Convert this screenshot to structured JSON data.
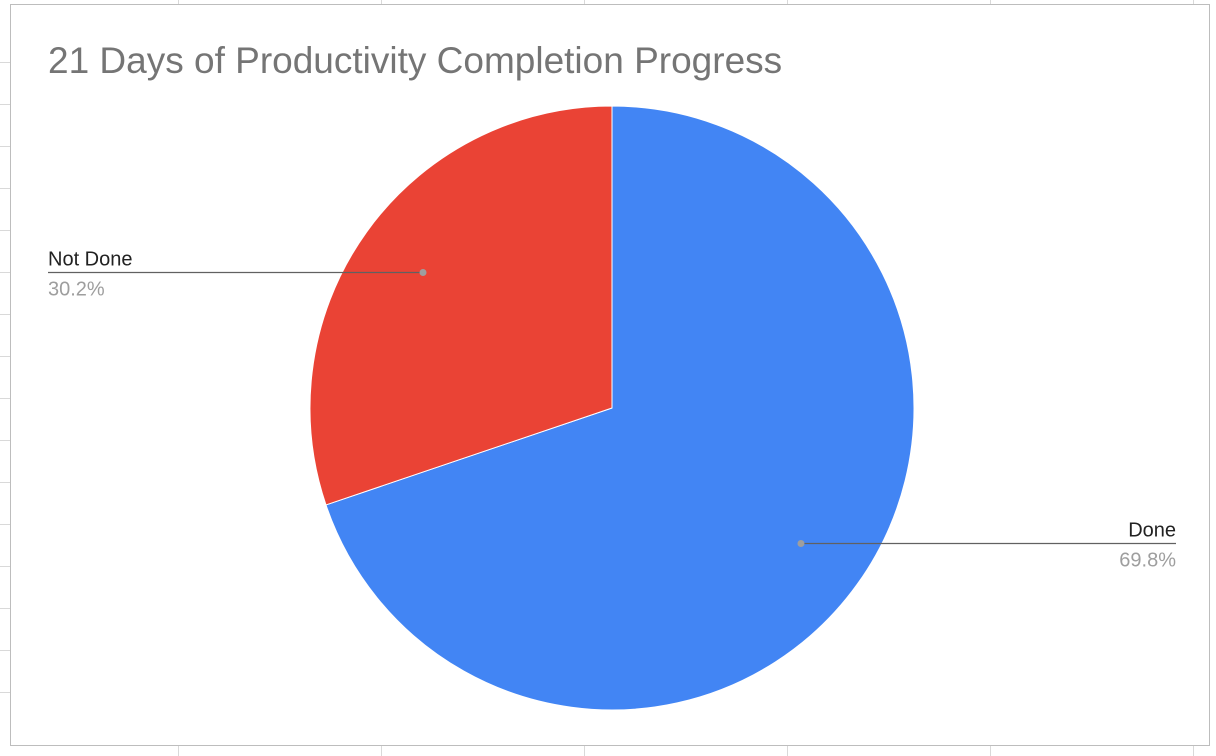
{
  "chart_data": {
    "type": "pie",
    "title": "21 Days of Productivity Completion Progress",
    "slices": [
      {
        "label": "Done",
        "percent_label": "69.8%",
        "value": 69.8,
        "color": "#4285f4"
      },
      {
        "label": "Not Done",
        "percent_label": "30.2%",
        "value": 30.2,
        "color": "#ea4335"
      }
    ],
    "start_angle_deg": 0,
    "direction": "clockwise",
    "legend": "none",
    "data_labels": "outside with leader lines"
  },
  "colors": {
    "title": "#757575",
    "leader_line": "#616161",
    "percent_text": "#9e9e9e"
  }
}
